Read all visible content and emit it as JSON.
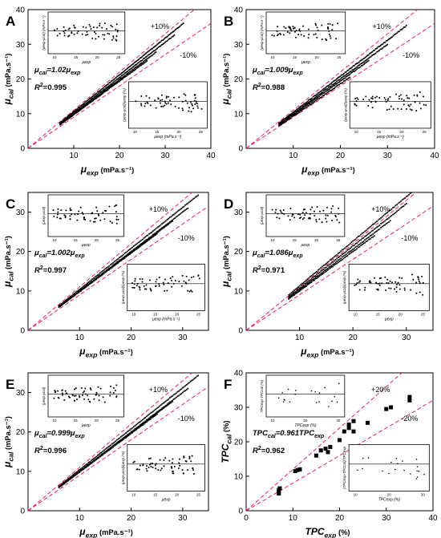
{
  "panels": [
    {
      "id": "A",
      "letter": "A",
      "xlabel_main": "μ",
      "xlabel_sub": "exp",
      "xlabel_unit": "(mPa.s",
      "ylabel_main": "μ",
      "ylabel_sub": "cal",
      "ylabel_unit": "(mPa.s",
      "xlim": [
        0,
        40
      ],
      "ylim": [
        0,
        40
      ],
      "xticks": [
        "10",
        "20",
        "30",
        "40"
      ],
      "yticks": [
        "0",
        "10",
        "20",
        "30",
        "40"
      ],
      "plus_label": "+10%",
      "minus_label": "-10%",
      "eq_lhs": "μ",
      "eq_lhs_sub": "cal",
      "eq_coef": "=1.02μ",
      "eq_rhs_sub": "exp",
      "r2_label": "R",
      "r2_value": "=0.995",
      "inset1_ylabel": "(μexp-μcal) (mPa.s⁻¹)",
      "inset1_xlabel": "μexp",
      "inset1_xticks": [
        "10",
        "15",
        "20",
        "25"
      ],
      "inset2_ylabel": "(μexp-μcal)/μexp (%)",
      "inset2_xlabel": "μexp (mPa.s⁻¹)",
      "inset2_xticks": [
        "10",
        "15",
        "20",
        "25"
      ]
    },
    {
      "id": "B",
      "letter": "B",
      "xlabel_main": "μ",
      "xlabel_sub": "exp",
      "xlabel_unit": "(mPa.s",
      "ylabel_main": "μ",
      "ylabel_sub": "cal",
      "ylabel_unit": "(mPa.s",
      "xlim": [
        0,
        40
      ],
      "ylim": [
        0,
        40
      ],
      "xticks": [
        "10",
        "20",
        "30",
        "40"
      ],
      "yticks": [
        "0",
        "10",
        "20",
        "30",
        "40"
      ],
      "plus_label": "+10%",
      "minus_label": "-10%",
      "eq_lhs": "μ",
      "eq_lhs_sub": "cal",
      "eq_coef": "=1.009μ",
      "eq_rhs_sub": "exp",
      "r2_label": "R",
      "r2_value": "=0.988",
      "inset1_ylabel": "(μexp-μcal) (mPa.s⁻¹)",
      "inset1_xlabel": "μexp",
      "inset1_xticks": [
        "10",
        "15",
        "20",
        "25"
      ],
      "inset2_ylabel": "(μexp-μcal)/μexp (%)",
      "inset2_xlabel": "μexp (mPa.s⁻¹)",
      "inset2_xticks": [
        "10",
        "15",
        "20",
        "25"
      ]
    },
    {
      "id": "C",
      "letter": "C",
      "xlabel_main": "μ",
      "xlabel_sub": "exp",
      "xlabel_unit": "(mPa.s",
      "ylabel_main": "μ",
      "ylabel_sub": "cal",
      "ylabel_unit": "(mPa.s",
      "xlim": [
        0,
        35
      ],
      "ylim": [
        0,
        35
      ],
      "xticks": [
        "10",
        "20",
        "30"
      ],
      "yticks": [
        "0",
        "10",
        "20",
        "30"
      ],
      "plus_label": "+10%",
      "minus_label": "-10%",
      "eq_lhs": "μ",
      "eq_lhs_sub": "cal",
      "eq_coef": "=1.002μ",
      "eq_rhs_sub": "exp",
      "r2_label": "R",
      "r2_value": "=0.997",
      "inset1_ylabel": "(μexp-μcal)",
      "inset1_xlabel": "μexp",
      "inset1_xticks": [
        "10",
        "15",
        "20",
        "25"
      ],
      "inset2_ylabel": "(μexp-μcal)/μexp (%)",
      "inset2_xlabel": "μexp (mPa.s⁻¹)",
      "inset2_xticks": [
        "10",
        "15",
        "20",
        "25"
      ]
    },
    {
      "id": "D",
      "letter": "D",
      "xlabel_main": "μ",
      "xlabel_sub": "exp",
      "xlabel_unit": "(mPa.s",
      "ylabel_main": "μ",
      "ylabel_sub": "cal",
      "ylabel_unit": "(mPa.s",
      "xlim": [
        0,
        35
      ],
      "ylim": [
        0,
        35
      ],
      "xticks": [
        "10",
        "20",
        "30"
      ],
      "yticks": [
        "0",
        "10",
        "20",
        "30"
      ],
      "plus_label": "+10%",
      "minus_label": "-10%",
      "eq_lhs": "μ",
      "eq_lhs_sub": "cal",
      "eq_coef": "=1.086μ",
      "eq_rhs_sub": "exp",
      "r2_label": "R",
      "r2_value": "=0.971",
      "inset1_ylabel": "(μexp-μcal)",
      "inset1_xlabel": "μexp",
      "inset1_xticks": [
        "10",
        "15",
        "20",
        "25"
      ],
      "inset2_ylabel": "(μexp-μcal)/μexp (%)",
      "inset2_xlabel": "μexp",
      "inset2_xticks": [
        "10",
        "15",
        "20",
        "25"
      ]
    },
    {
      "id": "E",
      "letter": "E",
      "xlabel_main": "μ",
      "xlabel_sub": "exp",
      "xlabel_unit": "(mPa.s",
      "ylabel_main": "μ",
      "ylabel_sub": "cal",
      "ylabel_unit": "(mPa.s",
      "xlim": [
        0,
        35
      ],
      "ylim": [
        0,
        35
      ],
      "xticks": [
        "10",
        "20",
        "30"
      ],
      "yticks": [
        "0",
        "10",
        "20",
        "30"
      ],
      "plus_label": "+10%",
      "minus_label": "-10%",
      "eq_lhs": "μ",
      "eq_lhs_sub": "cal",
      "eq_coef": "=0.999μ",
      "eq_rhs_sub": "exp",
      "r2_label": "R",
      "r2_value": "=0.996",
      "inset1_ylabel": "(μexp-μcal)",
      "inset1_xlabel": "μexp",
      "inset1_xticks": [
        "10",
        "15",
        "20",
        "25"
      ],
      "inset2_ylabel": "(μexp-μcal)/μexp (%)",
      "inset2_xlabel": "μexp",
      "inset2_xticks": [
        "10",
        "15",
        "20",
        "25"
      ]
    },
    {
      "id": "F",
      "letter": "F",
      "xlabel_main": "TPC",
      "xlabel_sub": "exp",
      "xlabel_unit": "(%)",
      "ylabel_main": "TPC",
      "ylabel_sub": "cal",
      "ylabel_unit": "(%)",
      "xlim": [
        0,
        40
      ],
      "ylim": [
        0,
        40
      ],
      "xticks": [
        "0",
        "10",
        "20",
        "30",
        "40"
      ],
      "yticks": [
        "0",
        "10",
        "20",
        "30",
        "40"
      ],
      "plus_label": "+20%",
      "minus_label": "-20%",
      "eq_lhs": "TPC",
      "eq_lhs_sub": "cal",
      "eq_coef": "=0.961TPC",
      "eq_rhs_sub": "exp",
      "r2_label": "R",
      "r2_value": "=0.962",
      "inset1_ylabel": "TPCexp-TPCcal (%)",
      "inset1_xlabel": "TPCexp (%)",
      "inset1_xticks": [
        "10",
        "20",
        "30"
      ],
      "inset2_ylabel": "(TPCexp-TPCcal)/TPCexp",
      "inset2_xlabel": "TPCexp (%)",
      "inset2_xticks": [
        "10",
        "20",
        "30"
      ]
    }
  ],
  "chart_data": [
    {
      "panel": "A",
      "type": "scatter",
      "xlabel": "μexp (mPa.s−1)",
      "ylabel": "μcal (mPa.s−1)",
      "xlim": [
        0,
        40
      ],
      "ylim": [
        0,
        40
      ],
      "fit": {
        "slope": 1.02,
        "r2": 0.995
      },
      "bounds": [
        "+10%",
        "-10%"
      ],
      "curves": [
        {
          "x0": 7,
          "x1": 34,
          "slope": 1.06,
          "noise": 0.15
        },
        {
          "x0": 7,
          "x1": 32,
          "slope": 1.02,
          "noise": 0.15
        },
        {
          "x0": 7,
          "x1": 28,
          "slope": 0.99,
          "noise": 0.15
        },
        {
          "x0": 7,
          "x1": 26,
          "slope": 0.97,
          "noise": 0.15
        }
      ]
    },
    {
      "panel": "B",
      "type": "scatter",
      "xlabel": "μexp (mPa.s−1)",
      "ylabel": "μcal (mPa.s−1)",
      "xlim": [
        0,
        40
      ],
      "ylim": [
        0,
        40
      ],
      "fit": {
        "slope": 1.009,
        "r2": 0.988
      },
      "bounds": [
        "+10%",
        "-10%"
      ],
      "curves": [
        {
          "x0": 7,
          "x1": 34,
          "slope": 1.04,
          "noise": 0.2
        },
        {
          "x0": 7,
          "x1": 30,
          "slope": 1.0,
          "noise": 0.2
        },
        {
          "x0": 7,
          "x1": 26,
          "slope": 0.97,
          "noise": 0.2
        },
        {
          "x0": 7,
          "x1": 22,
          "slope": 0.93,
          "noise": 0.2
        }
      ]
    },
    {
      "panel": "C",
      "type": "scatter",
      "xlabel": "μexp (mPa.s−1)",
      "ylabel": "μcal (mPa.s−1)",
      "xlim": [
        0,
        35
      ],
      "ylim": [
        0,
        35
      ],
      "fit": {
        "slope": 1.002,
        "r2": 0.997
      },
      "bounds": [
        "+10%",
        "-10%"
      ],
      "curves": [
        {
          "x0": 6,
          "x1": 33,
          "slope": 1.04,
          "noise": 0.1
        },
        {
          "x0": 6,
          "x1": 31,
          "slope": 1.0,
          "noise": 0.1
        },
        {
          "x0": 6,
          "x1": 28,
          "slope": 0.99,
          "noise": 0.1
        },
        {
          "x0": 6,
          "x1": 25,
          "slope": 0.98,
          "noise": 0.1
        }
      ]
    },
    {
      "panel": "D",
      "type": "scatter",
      "xlabel": "μexp (mPa.s−1)",
      "ylabel": "μcal (mPa.s−1)",
      "xlim": [
        0,
        35
      ],
      "ylim": [
        0,
        35
      ],
      "fit": {
        "slope": 1.086,
        "r2": 0.971
      },
      "bounds": [
        "+10%",
        "-10%"
      ],
      "curves": [
        {
          "x0": 8,
          "x1": 33,
          "slope": 1.13,
          "noise": 0.15
        },
        {
          "x0": 8,
          "x1": 30,
          "slope": 1.07,
          "noise": 0.15
        },
        {
          "x0": 8,
          "x1": 27,
          "slope": 1.03,
          "noise": 0.15
        },
        {
          "x0": 8,
          "x1": 24,
          "slope": 1.0,
          "noise": 0.15
        }
      ]
    },
    {
      "panel": "E",
      "type": "scatter",
      "xlabel": "μexp (mPa.s−1)",
      "ylabel": "μcal (mPa.s−1)",
      "xlim": [
        0,
        35
      ],
      "ylim": [
        0,
        35
      ],
      "fit": {
        "slope": 0.999,
        "r2": 0.996
      },
      "bounds": [
        "+10%",
        "-10%"
      ],
      "curves": [
        {
          "x0": 6,
          "x1": 33,
          "slope": 1.04,
          "noise": 0.1
        },
        {
          "x0": 6,
          "x1": 31,
          "slope": 1.0,
          "noise": 0.1
        },
        {
          "x0": 6,
          "x1": 28,
          "slope": 0.99,
          "noise": 0.1
        },
        {
          "x0": 6,
          "x1": 25,
          "slope": 0.98,
          "noise": 0.1
        }
      ]
    },
    {
      "panel": "F",
      "type": "scatter",
      "xlabel": "TPCexp (%)",
      "ylabel": "TPCcal (%)",
      "xlim": [
        0,
        40
      ],
      "ylim": [
        0,
        40
      ],
      "fit": {
        "slope": 0.961,
        "r2": 0.962
      },
      "bounds": [
        "+20%",
        "-20%"
      ],
      "points": [
        [
          7,
          5
        ],
        [
          7,
          5.5
        ],
        [
          7,
          6
        ],
        [
          7.2,
          6.5
        ],
        [
          10.5,
          11.5
        ],
        [
          11,
          11.8
        ],
        [
          11.5,
          12
        ],
        [
          15,
          16
        ],
        [
          16,
          17.5
        ],
        [
          17,
          18
        ],
        [
          17.5,
          17
        ],
        [
          18,
          18.5
        ],
        [
          20,
          20.5
        ],
        [
          21,
          23
        ],
        [
          22,
          24
        ],
        [
          22,
          25
        ],
        [
          23,
          23
        ],
        [
          23,
          26
        ],
        [
          26,
          25.5
        ],
        [
          30,
          29.5
        ],
        [
          31,
          30
        ],
        [
          35,
          32
        ],
        [
          35,
          33
        ]
      ]
    }
  ]
}
